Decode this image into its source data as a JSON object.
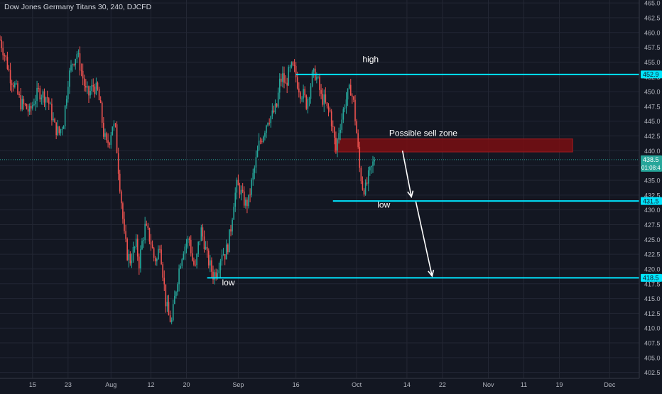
{
  "title": "Dow Jones Germany Titans 30, 240, DJCFD",
  "colors": {
    "background": "#131722",
    "grid": "#232734",
    "text": "#d1d4dc",
    "axis_text": "#b2b5be",
    "up": "#26a69a",
    "down": "#ef5350",
    "level": "#00e5ff",
    "zone_fill": "#7a0e12",
    "current_price_line": "#26a69a",
    "arrow": "#ffffff"
  },
  "chart_data": {
    "type": "candlestick",
    "symbol": "Dow Jones Germany Titans 30",
    "interval": "240",
    "source": "DJCFD",
    "ylim": [
      401.5,
      465.5
    ],
    "y_ticks": [
      "402.5",
      "405.0",
      "407.5",
      "410.0",
      "412.5",
      "415.0",
      "417.5",
      "420.0",
      "422.5",
      "425.0",
      "427.5",
      "430.0",
      "432.5",
      "435.0",
      "437.5",
      "440.0",
      "442.5",
      "445.0",
      "447.5",
      "450.0",
      "452.5",
      "455.0",
      "457.5",
      "460.0",
      "462.5",
      "465.0"
    ],
    "x_ticks": [
      {
        "label": "15",
        "t": 22
      },
      {
        "label": "23",
        "t": 46
      },
      {
        "label": "Aug",
        "t": 75
      },
      {
        "label": "12",
        "t": 102
      },
      {
        "label": "20",
        "t": 126
      },
      {
        "label": "Sep",
        "t": 161
      },
      {
        "label": "16",
        "t": 200
      },
      {
        "label": "Oct",
        "t": 241
      },
      {
        "label": "14",
        "t": 275
      },
      {
        "label": "22",
        "t": 299
      },
      {
        "label": "Nov",
        "t": 330
      },
      {
        "label": "11",
        "t": 354
      },
      {
        "label": "19",
        "t": 378
      },
      {
        "label": "Dec",
        "t": 412
      }
    ],
    "t_range": [
      0,
      432
    ],
    "anchors": [
      [
        0,
        458.8
      ],
      [
        4,
        455.5
      ],
      [
        7,
        452.5
      ],
      [
        10,
        451.0
      ],
      [
        14,
        448.0
      ],
      [
        17,
        447.5
      ],
      [
        20,
        446.5
      ],
      [
        23,
        448.5
      ],
      [
        26,
        450.0
      ],
      [
        29,
        449.5
      ],
      [
        32,
        449.0
      ],
      [
        34,
        447.0
      ],
      [
        37,
        444.0
      ],
      [
        40,
        443.0
      ],
      [
        43,
        445.0
      ],
      [
        46,
        452.0
      ],
      [
        49,
        455.0
      ],
      [
        52,
        456.5
      ],
      [
        55,
        453.5
      ],
      [
        58,
        450.0
      ],
      [
        60,
        449.5
      ],
      [
        63,
        451.0
      ],
      [
        66,
        450.0
      ],
      [
        68,
        447.0
      ],
      [
        70,
        443.0
      ],
      [
        72,
        441.0
      ],
      [
        74,
        442.0
      ],
      [
        76,
        444.5
      ],
      [
        78,
        443.5
      ],
      [
        80,
        437.0
      ],
      [
        82,
        431.5
      ],
      [
        84,
        425.5
      ],
      [
        86,
        422.5
      ],
      [
        88,
        421.5
      ],
      [
        90,
        423.0
      ],
      [
        92,
        424.0
      ],
      [
        94,
        421.0
      ],
      [
        96,
        424.5
      ],
      [
        98,
        427.0
      ],
      [
        100,
        426.0
      ],
      [
        102,
        424.5
      ],
      [
        104,
        422.0
      ],
      [
        106,
        421.5
      ],
      [
        108,
        424.5
      ],
      [
        110,
        419.5
      ],
      [
        112,
        414.5
      ],
      [
        114,
        412.0
      ],
      [
        116,
        411.0
      ],
      [
        118,
        415.0
      ],
      [
        120,
        418.5
      ],
      [
        122,
        421.5
      ],
      [
        124,
        423.5
      ],
      [
        126,
        424.5
      ],
      [
        128,
        425.0
      ],
      [
        130,
        421.5
      ],
      [
        132,
        420.0
      ],
      [
        134,
        424.0
      ],
      [
        136,
        426.5
      ],
      [
        138,
        424.5
      ],
      [
        140,
        422.0
      ],
      [
        142,
        420.5
      ],
      [
        144,
        419.0
      ],
      [
        146,
        419.5
      ],
      [
        148,
        421.0
      ],
      [
        150,
        423.0
      ],
      [
        152,
        422.5
      ],
      [
        154,
        424.0
      ],
      [
        156,
        427.0
      ],
      [
        158,
        431.5
      ],
      [
        160,
        434.0
      ],
      [
        162,
        433.5
      ],
      [
        164,
        432.0
      ],
      [
        166,
        431.0
      ],
      [
        168,
        431.5
      ],
      [
        170,
        434.5
      ],
      [
        172,
        437.0
      ],
      [
        175,
        441.0
      ],
      [
        178,
        443.0
      ],
      [
        181,
        445.5
      ],
      [
        184,
        446.0
      ],
      [
        187,
        447.5
      ],
      [
        189,
        451.5
      ],
      [
        191,
        452.5
      ],
      [
        193,
        451.0
      ],
      [
        195,
        453.0
      ],
      [
        197,
        454.0
      ],
      [
        199,
        453.5
      ],
      [
        201,
        451.5
      ],
      [
        203,
        450.0
      ],
      [
        205,
        449.5
      ],
      [
        207,
        448.0
      ],
      [
        209,
        450.0
      ],
      [
        211,
        452.5
      ],
      [
        213,
        453.0
      ],
      [
        215,
        451.5
      ],
      [
        217,
        449.0
      ],
      [
        219,
        448.5
      ],
      [
        221,
        447.0
      ],
      [
        223,
        446.5
      ],
      [
        225,
        443.5
      ],
      [
        227,
        440.0
      ],
      [
        229,
        443.5
      ],
      [
        231,
        445.5
      ],
      [
        233,
        448.0
      ],
      [
        235,
        449.5
      ],
      [
        237,
        450.5
      ],
      [
        239,
        448.0
      ],
      [
        241,
        443.0
      ],
      [
        243,
        437.0
      ],
      [
        245,
        434.0
      ],
      [
        247,
        433.5
      ],
      [
        249,
        435.5
      ],
      [
        251,
        437.0
      ],
      [
        253,
        438.5
      ]
    ],
    "last_price": "438.5",
    "countdown": "01:08:4",
    "levels": [
      {
        "price": 452.9,
        "label": "452.9",
        "t_start": 200
      },
      {
        "price": 431.5,
        "label": "431.5",
        "t_start": 225
      },
      {
        "price": 418.5,
        "label": "418.5",
        "t_start": 140
      }
    ],
    "annotations": [
      {
        "text": "high",
        "t": 245,
        "price": 455.0
      },
      {
        "text": "low",
        "t": 255,
        "price": 430.4
      },
      {
        "text": "low",
        "t": 150,
        "price": 417.2
      },
      {
        "text": "Possible sell zone",
        "t": 263,
        "price": 442.5
      }
    ],
    "sell_zone": {
      "t_start": 226,
      "t_end": 387,
      "price_top": 442.0,
      "price_bottom": 439.8
    },
    "arrows": [
      {
        "t1": 272,
        "p1": 440.0,
        "t2": 278,
        "p2": 432.2
      },
      {
        "t1": 281,
        "p1": 431.4,
        "t2": 292,
        "p2": 418.8
      }
    ]
  }
}
